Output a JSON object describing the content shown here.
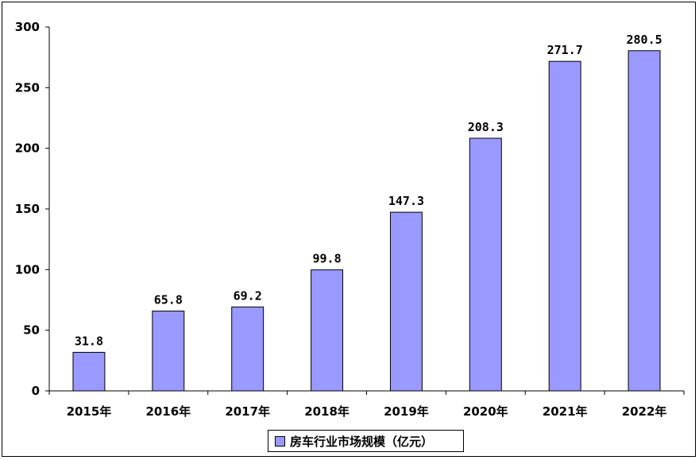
{
  "chart_data": {
    "type": "bar",
    "categories": [
      "2015年",
      "2016年",
      "2017年",
      "2018年",
      "2019年",
      "2020年",
      "2021年",
      "2022年"
    ],
    "series": [
      {
        "name": "房车行业市场规模（亿元）",
        "values": [
          31.8,
          65.8,
          69.2,
          99.8,
          147.3,
          208.3,
          271.7,
          280.5
        ],
        "labels": [
          "31.8",
          "65.8",
          "69.2",
          "99.8",
          "147.3",
          "208.3",
          "271.7",
          "280.5"
        ]
      }
    ],
    "yticks": [
      "0",
      "50",
      "100",
      "150",
      "200",
      "250",
      "300"
    ],
    "ylim": [
      0,
      300
    ],
    "grid": false,
    "legend": "bottom",
    "colors": {
      "bar": "#9999ff",
      "bar_border": "#000000"
    }
  }
}
